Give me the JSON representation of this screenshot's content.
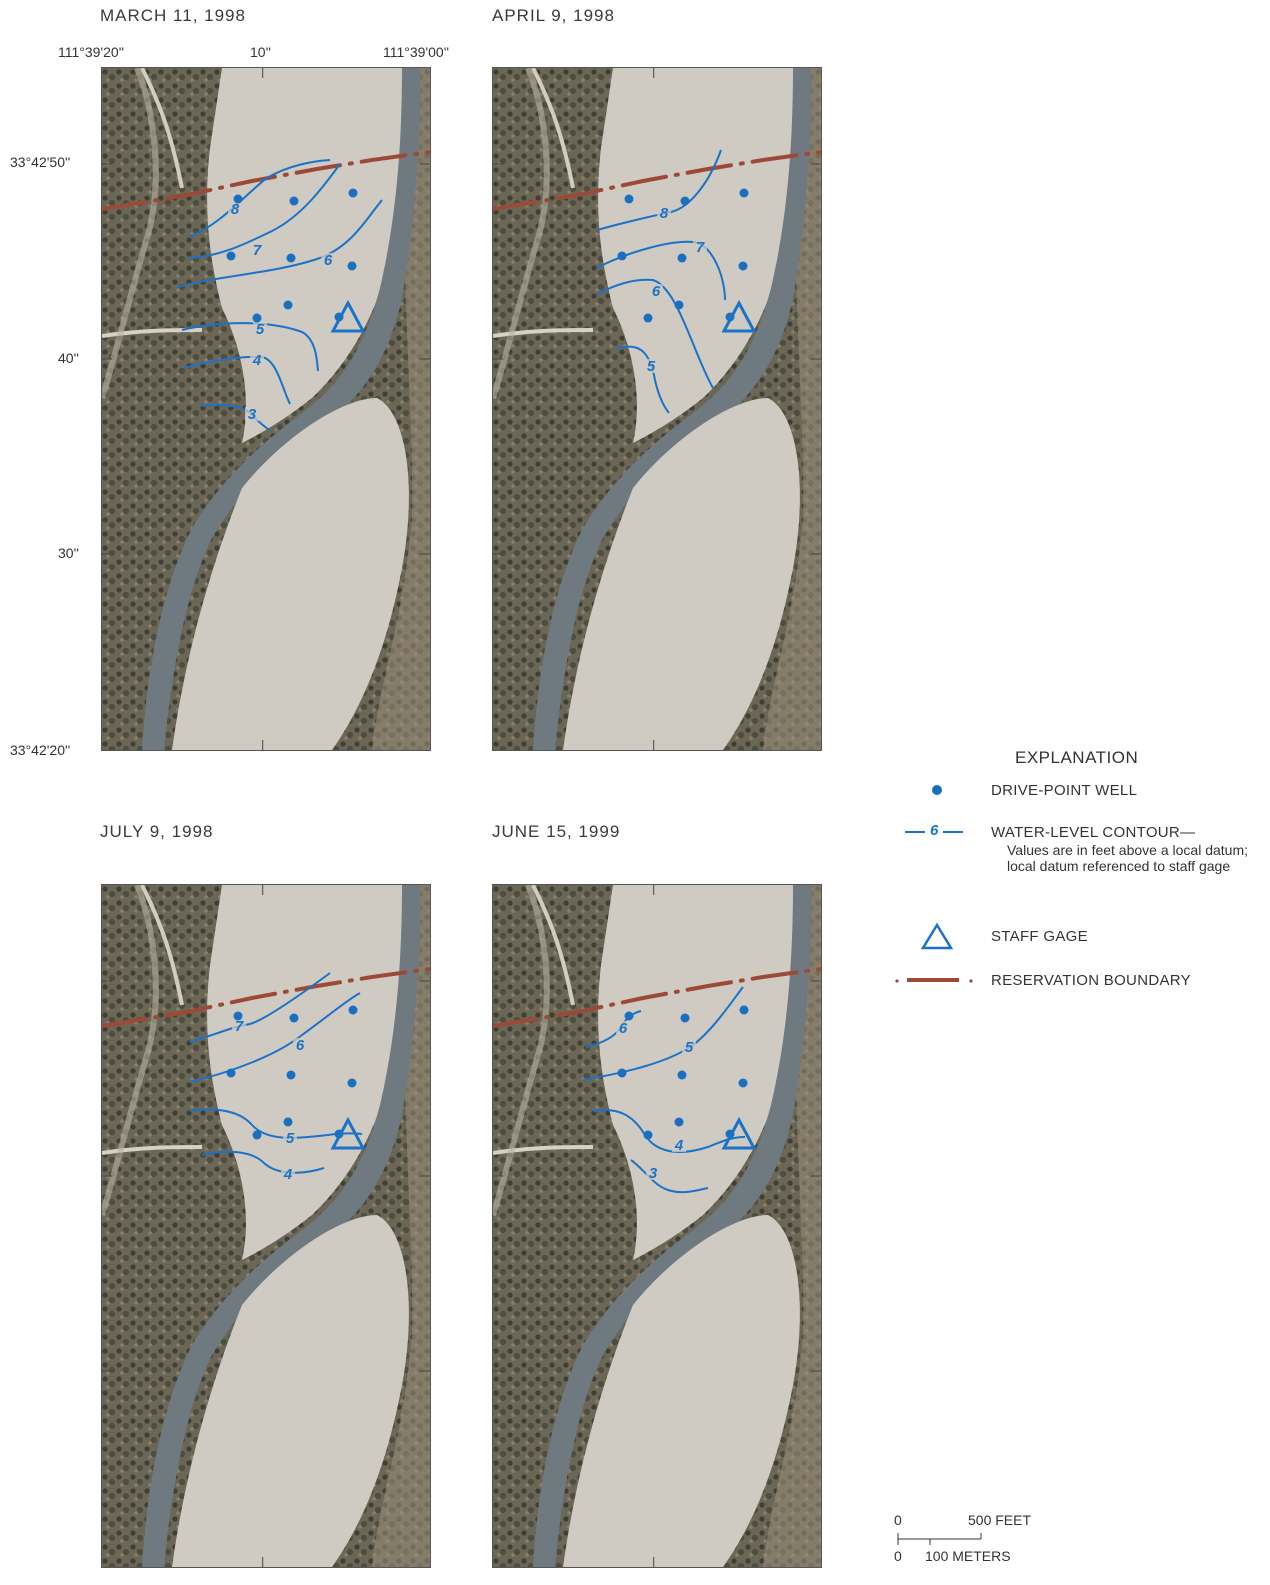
{
  "panels": [
    {
      "title": "MARCH 11, 1998",
      "contour_labels": [
        "8",
        "7",
        "6",
        "5",
        "4",
        "3"
      ]
    },
    {
      "title": "APRIL 9, 1998",
      "contour_labels": [
        "8",
        "7",
        "6",
        "5"
      ]
    },
    {
      "title": "JULY 9, 1998",
      "contour_labels": [
        "7",
        "6",
        "5",
        "4"
      ]
    },
    {
      "title": "JUNE 15, 1999",
      "contour_labels": [
        "6",
        "5",
        "4",
        "3"
      ]
    }
  ],
  "coordinates": {
    "longitudes": [
      "111°39'20''",
      "10''",
      "111°39'00''"
    ],
    "latitudes": [
      "33°42'50''",
      "40''",
      "30''",
      "33°42'20''"
    ]
  },
  "legend": {
    "title": "EXPLANATION",
    "items": [
      {
        "label": "DRIVE-POINT WELL",
        "icon": "well-dot-icon"
      },
      {
        "label": "WATER-LEVEL CONTOUR—",
        "sample_value": "6",
        "note": "Values are in feet above a local datum; local datum referenced to staff gage",
        "icon": "contour-line-icon"
      },
      {
        "label": "STAFF GAGE",
        "icon": "triangle-icon"
      },
      {
        "label": "RESERVATION BOUNDARY",
        "icon": "boundary-line-icon"
      }
    ]
  },
  "scale_bar": {
    "feet_zero": "0",
    "feet_label": "500 FEET",
    "meters_zero": "0",
    "meters_label": "100 METERS"
  },
  "colors": {
    "contour": "#1a73c8",
    "well": "#1a6fc0",
    "boundary": "#9c4a37",
    "river": "#6f7980",
    "sand": "#cfcbc2",
    "vegetation": "#5b5547"
  }
}
